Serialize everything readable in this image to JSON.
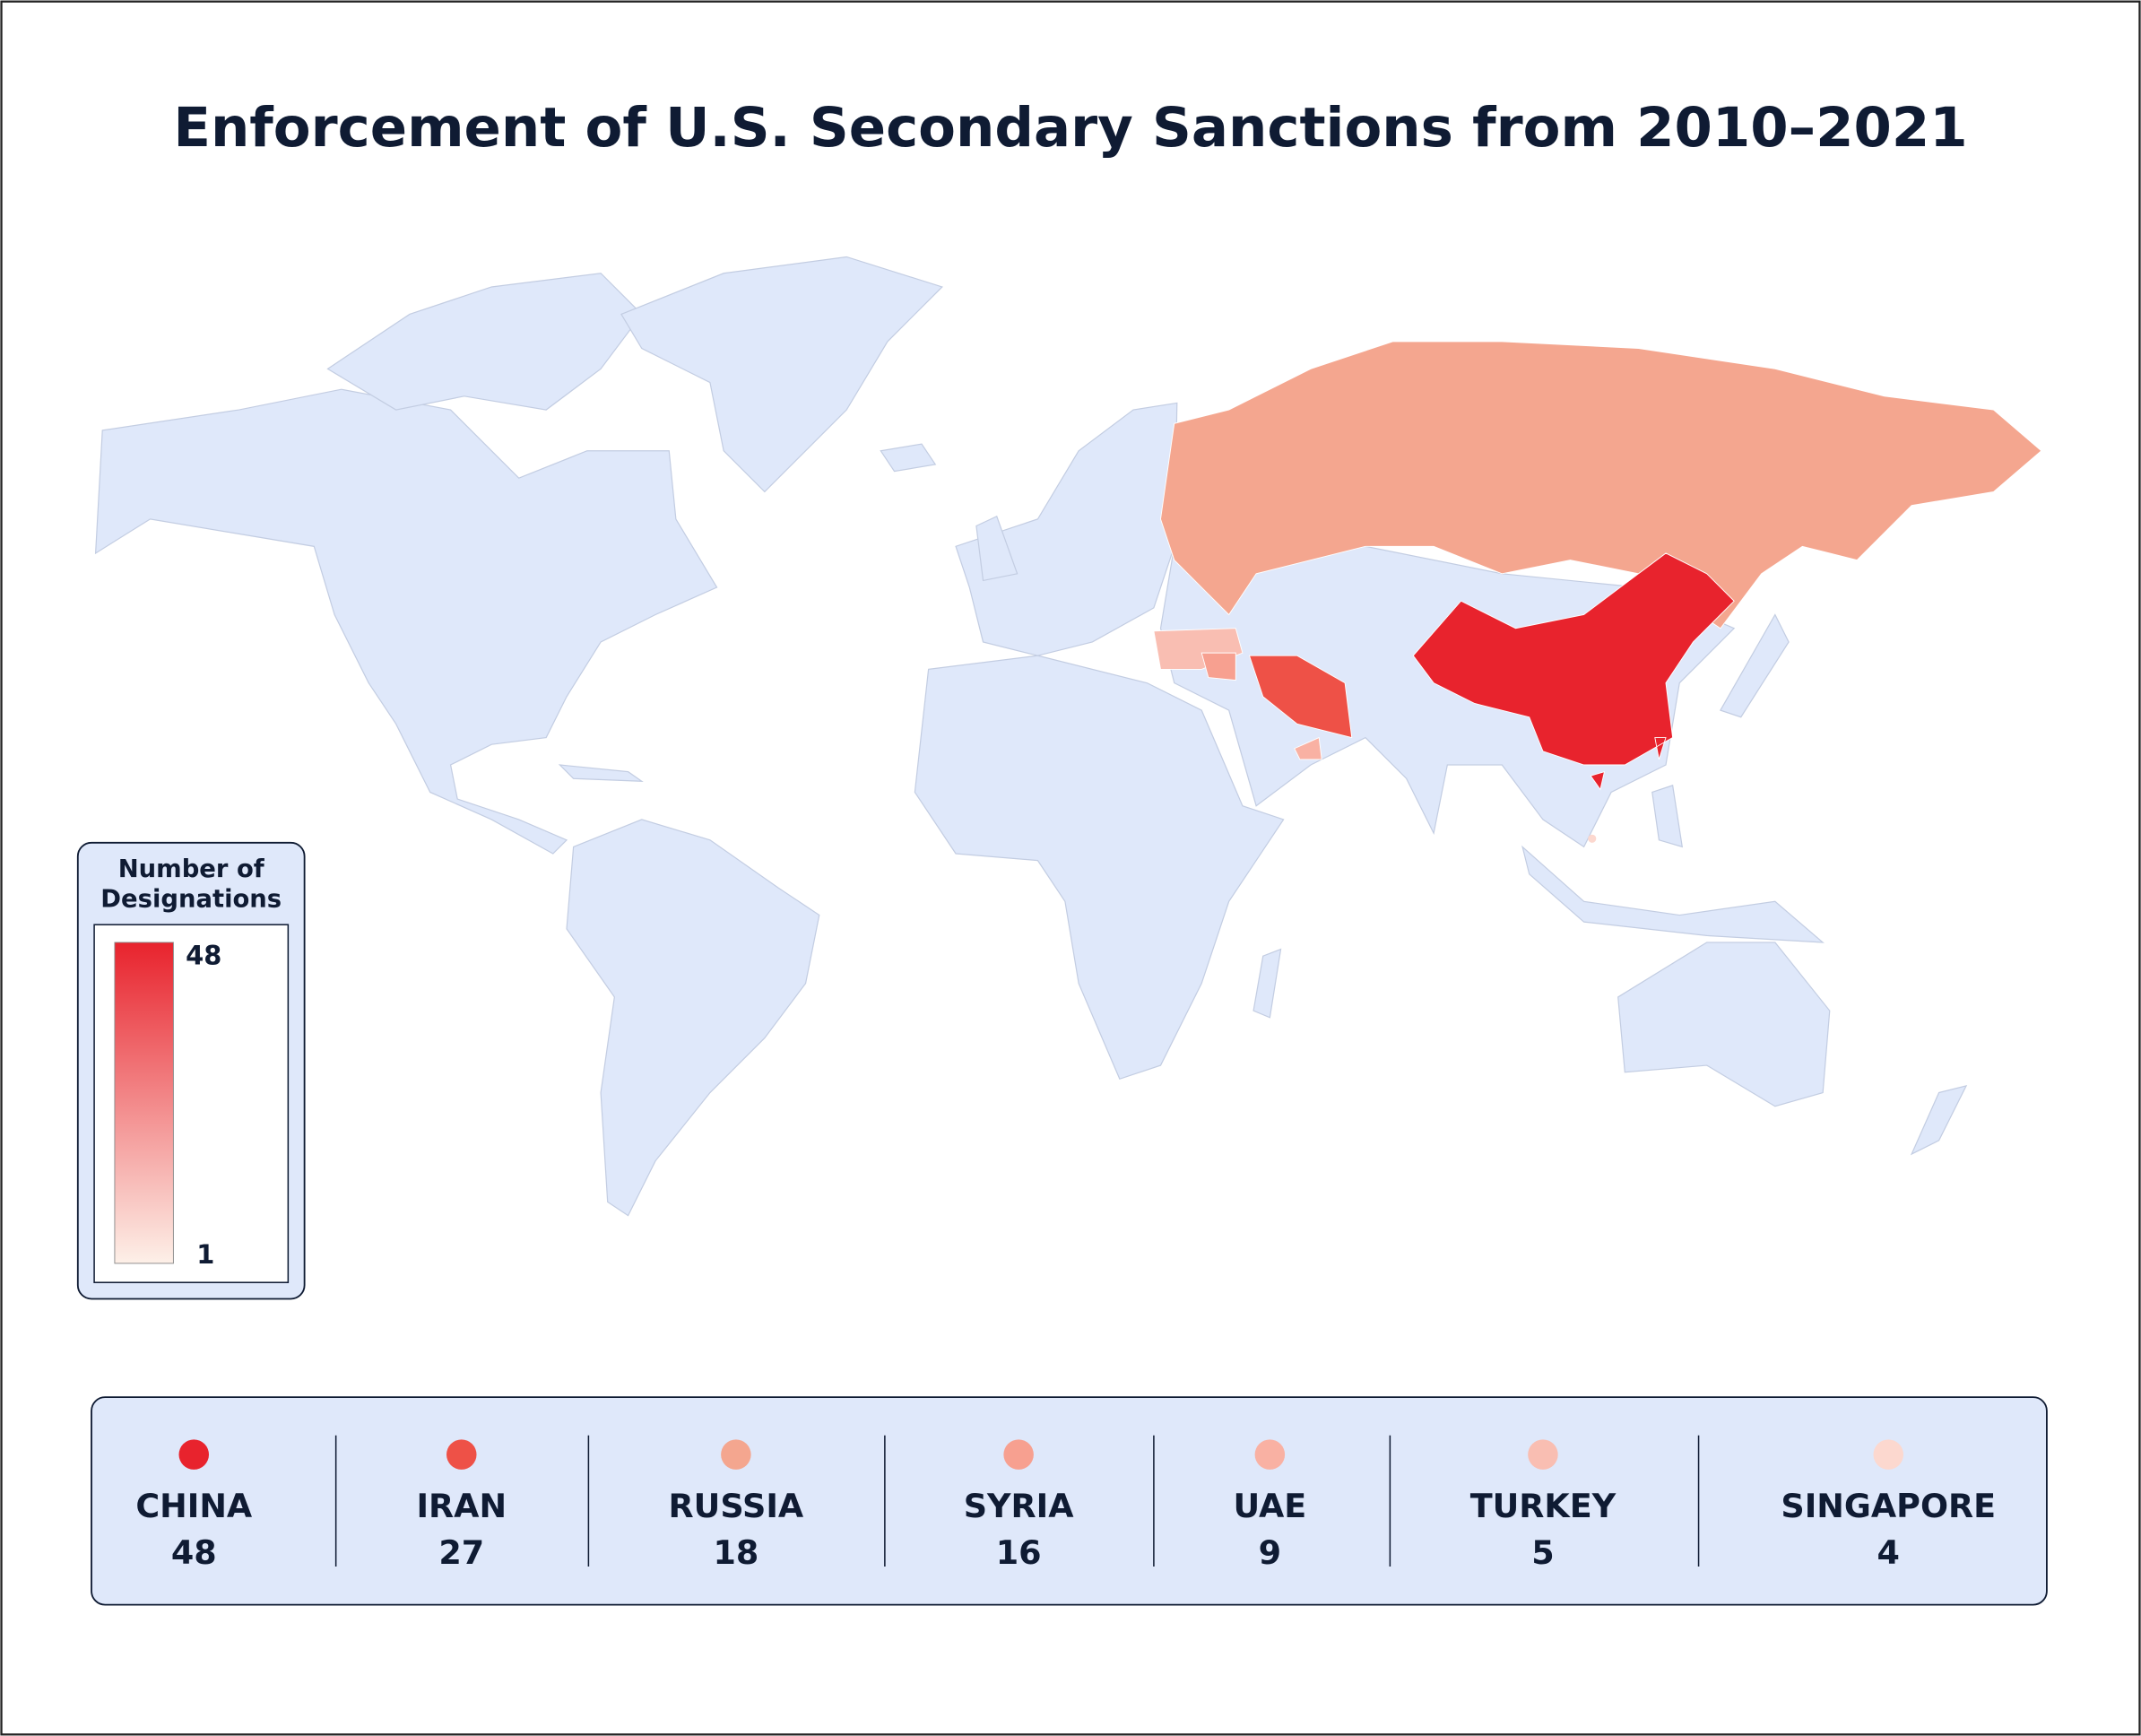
{
  "title": "Enforcement of U.S. Secondary Sanctions from 2010–2021",
  "legend": {
    "title": [
      "Number of",
      "Designations"
    ],
    "max": 48,
    "min": 1,
    "max_color": "#e8232d",
    "min_color": "#fdf0e8"
  },
  "countries": [
    {
      "name": "CHINA",
      "value": 48,
      "color": "#e8232d"
    },
    {
      "name": "IRAN",
      "value": 27,
      "color": "#ee5147"
    },
    {
      "name": "RUSSIA",
      "value": 18,
      "color": "#f4a68f"
    },
    {
      "name": "SYRIA",
      "value": 16,
      "color": "#f7a090"
    },
    {
      "name": "UAE",
      "value": 9,
      "color": "#f9b1a3"
    },
    {
      "name": "TURKEY",
      "value": 5,
      "color": "#f9beb2"
    },
    {
      "name": "SINGAPORE",
      "value": 4,
      "color": "#fcd8cf"
    }
  ]
}
